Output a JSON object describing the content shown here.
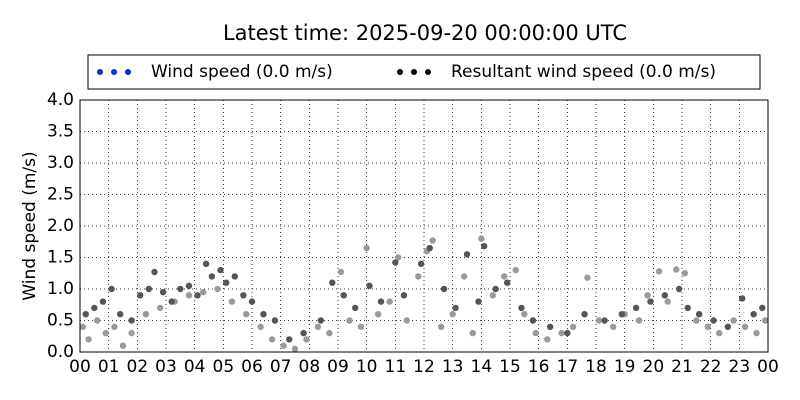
{
  "chart_data": {
    "type": "scatter",
    "title": "Latest time: 2025-09-20 00:00:00 UTC",
    "y_label": "Wind speed (m/s)",
    "xlim": [
      0,
      24
    ],
    "ylim": [
      0,
      4
    ],
    "grid": true,
    "xticks": [
      {
        "value": 0,
        "label": "00"
      },
      {
        "value": 1,
        "label": "01"
      },
      {
        "value": 2,
        "label": "02"
      },
      {
        "value": 3,
        "label": "03"
      },
      {
        "value": 4,
        "label": "04"
      },
      {
        "value": 5,
        "label": "05"
      },
      {
        "value": 6,
        "label": "06"
      },
      {
        "value": 7,
        "label": "07"
      },
      {
        "value": 8,
        "label": "08"
      },
      {
        "value": 9,
        "label": "09"
      },
      {
        "value": 10,
        "label": "10"
      },
      {
        "value": 11,
        "label": "11"
      },
      {
        "value": 12,
        "label": "12"
      },
      {
        "value": 13,
        "label": "13"
      },
      {
        "value": 14,
        "label": "14"
      },
      {
        "value": 15,
        "label": "15"
      },
      {
        "value": 16,
        "label": "16"
      },
      {
        "value": 17,
        "label": "17"
      },
      {
        "value": 18,
        "label": "18"
      },
      {
        "value": 19,
        "label": "19"
      },
      {
        "value": 20,
        "label": "20"
      },
      {
        "value": 21,
        "label": "21"
      },
      {
        "value": 22,
        "label": "22"
      },
      {
        "value": 23,
        "label": "23"
      },
      {
        "value": 24,
        "label": "00"
      }
    ],
    "yticks": [
      {
        "value": 0,
        "label": "0.0"
      },
      {
        "value": 0.5,
        "label": "0.5"
      },
      {
        "value": 1,
        "label": "1.0"
      },
      {
        "value": 1.5,
        "label": "1.5"
      },
      {
        "value": 2,
        "label": "2.0"
      },
      {
        "value": 2.5,
        "label": "2.5"
      },
      {
        "value": 3,
        "label": "3.0"
      },
      {
        "value": 3.5,
        "label": "3.5"
      },
      {
        "value": 4,
        "label": "4.0"
      }
    ],
    "series": [
      {
        "name": "Wind speed (0.0 m/s)",
        "color": "#0a2ee0",
        "marker_color": "#9a9a9a",
        "x": [
          0.1,
          0.3,
          0.6,
          0.9,
          1.2,
          1.5,
          1.8,
          2.3,
          2.8,
          3.3,
          3.8,
          4.3,
          4.8,
          5.3,
          5.8,
          6.3,
          6.7,
          7.1,
          7.5,
          7.9,
          8.3,
          8.7,
          9.1,
          9.4,
          9.8,
          10.0,
          10.4,
          10.8,
          11.1,
          11.4,
          11.8,
          12.1,
          12.3,
          12.6,
          13.0,
          13.4,
          13.7,
          14.0,
          14.4,
          14.8,
          15.2,
          15.5,
          15.9,
          16.3,
          16.8,
          17.2,
          17.7,
          18.1,
          18.6,
          19.0,
          19.5,
          19.8,
          20.2,
          20.5,
          20.8,
          21.1,
          21.5,
          21.9,
          22.3,
          22.8,
          23.2,
          23.6,
          23.9
        ],
        "values": [
          0.4,
          0.2,
          0.5,
          0.3,
          0.4,
          0.1,
          0.3,
          0.6,
          0.7,
          0.8,
          0.9,
          0.95,
          1.0,
          0.8,
          0.6,
          0.4,
          0.2,
          0.1,
          0.05,
          0.2,
          0.4,
          0.3,
          1.27,
          0.5,
          0.4,
          1.65,
          0.6,
          0.8,
          1.5,
          0.5,
          1.2,
          1.6,
          1.77,
          0.4,
          0.6,
          1.2,
          0.3,
          1.8,
          0.9,
          1.2,
          1.3,
          0.6,
          0.3,
          0.2,
          0.3,
          0.4,
          1.18,
          0.5,
          0.4,
          0.6,
          0.5,
          0.9,
          1.28,
          0.8,
          1.31,
          1.25,
          0.5,
          0.4,
          0.3,
          0.5,
          0.4,
          0.3,
          0.5
        ]
      },
      {
        "name": "Resultant wind speed (0.0 m/s)",
        "color": "#000000",
        "marker_color": "#555555",
        "x": [
          0.2,
          0.5,
          0.8,
          1.1,
          1.4,
          1.8,
          2.1,
          2.4,
          2.6,
          2.9,
          3.2,
          3.5,
          3.8,
          4.1,
          4.4,
          4.6,
          4.9,
          5.1,
          5.4,
          5.7,
          6.0,
          6.4,
          6.8,
          7.3,
          7.8,
          8.4,
          8.8,
          9.2,
          9.6,
          10.1,
          10.5,
          11.0,
          11.3,
          11.9,
          12.2,
          12.7,
          13.1,
          13.5,
          13.9,
          14.1,
          14.5,
          14.9,
          15.4,
          15.8,
          16.4,
          17.0,
          17.6,
          18.3,
          18.9,
          19.4,
          19.9,
          20.4,
          20.9,
          21.2,
          21.6,
          22.1,
          22.6,
          23.1,
          23.5,
          23.8
        ],
        "values": [
          0.6,
          0.7,
          0.8,
          1.0,
          0.6,
          0.5,
          0.9,
          1.0,
          1.27,
          0.95,
          0.8,
          1.0,
          1.05,
          0.9,
          1.4,
          1.2,
          1.3,
          1.1,
          1.2,
          0.9,
          0.8,
          0.6,
          0.5,
          0.2,
          0.3,
          0.5,
          1.1,
          0.9,
          0.7,
          1.05,
          0.8,
          1.42,
          0.9,
          1.4,
          1.65,
          1.0,
          0.7,
          1.55,
          0.8,
          1.68,
          1.0,
          1.1,
          0.7,
          0.5,
          0.4,
          0.3,
          0.6,
          0.5,
          0.6,
          0.7,
          0.8,
          0.9,
          1.0,
          0.7,
          0.6,
          0.5,
          0.4,
          0.85,
          0.6,
          0.7
        ]
      }
    ]
  }
}
